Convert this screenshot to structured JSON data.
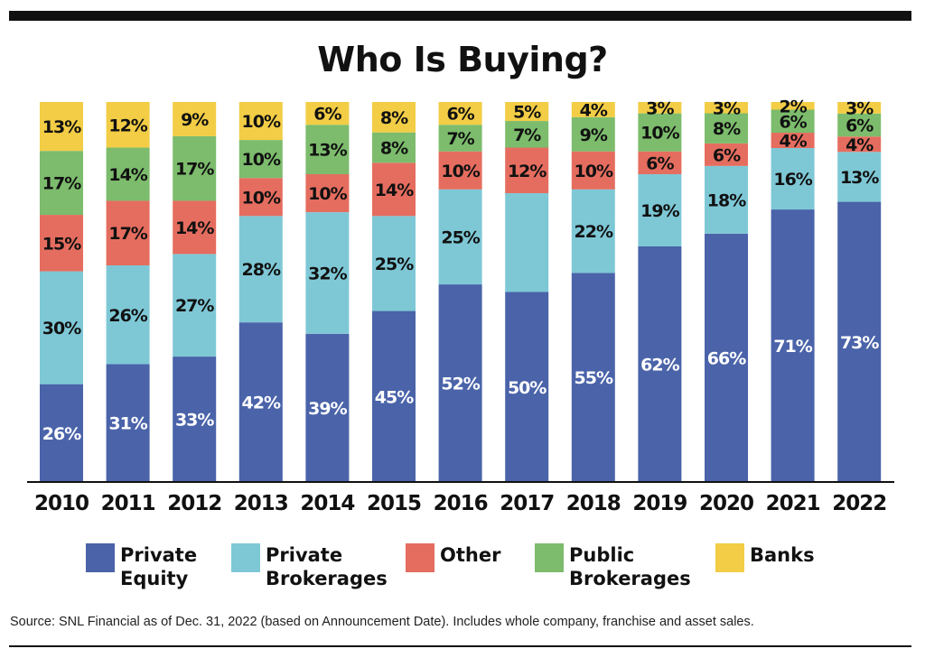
{
  "chart_data": {
    "type": "bar",
    "stacked": true,
    "percent_stacked": true,
    "title": "Who Is Buying?",
    "xlabel": "",
    "ylabel": "",
    "ylim": [
      0,
      100
    ],
    "categories": [
      "2010",
      "2011",
      "2012",
      "2013",
      "2014",
      "2015",
      "2016",
      "2017",
      "2018",
      "2019",
      "2020",
      "2021",
      "2022"
    ],
    "series": [
      {
        "name": "Private Equity",
        "color": "#4a63a9",
        "label_color": "#ffffff",
        "values": [
          26,
          31,
          33,
          42,
          39,
          45,
          52,
          50,
          55,
          62,
          66,
          71,
          73
        ]
      },
      {
        "name": "Private Brokerages",
        "color": "#7ec8d6",
        "label_color": "#111111",
        "values": [
          30,
          26,
          27,
          28,
          32,
          25,
          25,
          26,
          22,
          19,
          18,
          16,
          13
        ]
      },
      {
        "name": "Other",
        "color": "#e56d5f",
        "label_color": "#111111",
        "values": [
          15,
          17,
          14,
          10,
          10,
          14,
          10,
          12,
          10,
          6,
          6,
          4,
          4
        ]
      },
      {
        "name": "Public Brokerages",
        "color": "#7cbc6c",
        "label_color": "#111111",
        "values": [
          17,
          14,
          17,
          10,
          13,
          8,
          7,
          7,
          9,
          10,
          8,
          6,
          6
        ]
      },
      {
        "name": "Banks",
        "color": "#f2cd45",
        "label_color": "#111111",
        "values": [
          13,
          12,
          9,
          10,
          6,
          8,
          6,
          5,
          4,
          3,
          3,
          2,
          3
        ]
      }
    ],
    "labels": [
      [
        "26%",
        "31%",
        "33%",
        "42%",
        "39%",
        "45%",
        "52%",
        "50%",
        "55%",
        "62%",
        "66%",
        "71%",
        "73%"
      ],
      [
        "30%",
        "26%",
        "27%",
        "28%",
        "32%",
        "25%",
        "25%",
        "",
        "22%",
        "19%",
        "18%",
        "16%",
        "13%"
      ],
      [
        "15%",
        "17%",
        "14%",
        "10%",
        "10%",
        "14%",
        "10%",
        "12%",
        "10%",
        "6%",
        "6%",
        "4%",
        "4%"
      ],
      [
        "17%",
        "14%",
        "17%",
        "10%",
        "13%",
        "8%",
        "7%",
        "7%",
        "9%",
        "10%",
        "8%",
        "6%",
        "6%"
      ],
      [
        "13%",
        "12%",
        "9%",
        "10%",
        "6%",
        "8%",
        "6%",
        "5%",
        "4%",
        "3%",
        "3%",
        "2%",
        "3%"
      ]
    ],
    "grid": false,
    "legend_position": "bottom",
    "source": "Source: SNL Financial as of Dec. 31, 2022 (based on Announcement Date).  Includes whole company, franchise and asset sales."
  },
  "legend": [
    {
      "line1": "Private",
      "line2": "Equity",
      "color": "#4a63a9"
    },
    {
      "line1": "Private",
      "line2": "Brokerages",
      "color": "#7ec8d6"
    },
    {
      "line1": "Other",
      "line2": "",
      "color": "#e56d5f"
    },
    {
      "line1": "Public",
      "line2": "Brokerages",
      "color": "#7cbc6c"
    },
    {
      "line1": "Banks",
      "line2": "",
      "color": "#f2cd45"
    }
  ]
}
